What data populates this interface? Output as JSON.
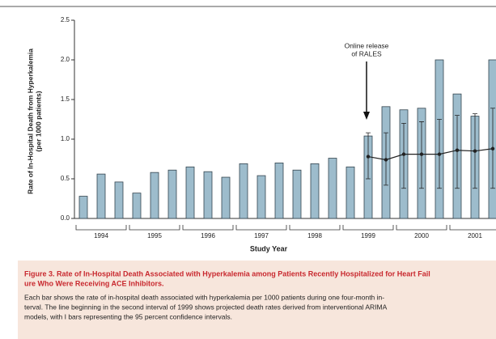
{
  "chart_data": {
    "type": "bar",
    "ylabel": [
      "Rate of In-Hospital Death from Hyperkalemia",
      "(per 1000 patients)"
    ],
    "xlabel": "Study Year",
    "years": [
      "1994",
      "1995",
      "1996",
      "1997",
      "1998",
      "1999",
      "2000",
      "2001"
    ],
    "ylim": [
      0,
      2.5
    ],
    "yticks": [
      {
        "value": 0,
        "label": "0.0"
      },
      0.5,
      {
        "value": 1,
        "label": "1.0"
      },
      1.5,
      {
        "value": 2,
        "label": "2.0"
      },
      2.5
    ],
    "series": [
      {
        "type": "bar",
        "color": "#9dbccc",
        "values": [
          0.28,
          0.56,
          0.46,
          0.32,
          0.58,
          0.61,
          0.65,
          0.59,
          0.52,
          0.69,
          0.54,
          0.7,
          0.61,
          0.69,
          0.76,
          0.65,
          1.04,
          1.41,
          1.37,
          1.39,
          2.0,
          1.57,
          1.29,
          2.0
        ]
      },
      {
        "type": "line",
        "color": "#222222",
        "values": [
          null,
          null,
          null,
          null,
          null,
          null,
          null,
          null,
          null,
          null,
          null,
          null,
          null,
          null,
          null,
          null,
          0.78,
          0.74,
          0.81,
          0.81,
          0.81,
          0.86,
          0.85,
          0.88
        ],
        "ci_low": [
          null,
          null,
          null,
          null,
          null,
          null,
          null,
          null,
          null,
          null,
          null,
          null,
          null,
          null,
          null,
          null,
          0.5,
          0.42,
          0.38,
          0.38,
          0.38,
          0.38,
          0.38,
          0.38
        ],
        "ci_high": [
          null,
          null,
          null,
          null,
          null,
          null,
          null,
          null,
          null,
          null,
          null,
          null,
          null,
          null,
          null,
          null,
          1.08,
          1.08,
          1.2,
          1.22,
          1.25,
          1.3,
          1.32,
          1.39
        ]
      }
    ],
    "annotation": [
      "Online release",
      "of RALES"
    ],
    "caption": {
      "title": [
        "Figure 3. Rate of In-Hospital Death Associated with Hyperkalemia among Patients Recently Hospitalized for Heart Fail",
        "ure Who Were Receiving ACE Inhibitors."
      ],
      "body": [
        "Each bar shows the rate of in-hospital death associated with hyperkalemia per 1000 patients during one four-month in-",
        "terval. The line beginning in the second interval of 1999 shows projected death rates derived from interventional ARIMA",
        "models, with I bars representing the 95 percent confidence intervals."
      ]
    }
  }
}
